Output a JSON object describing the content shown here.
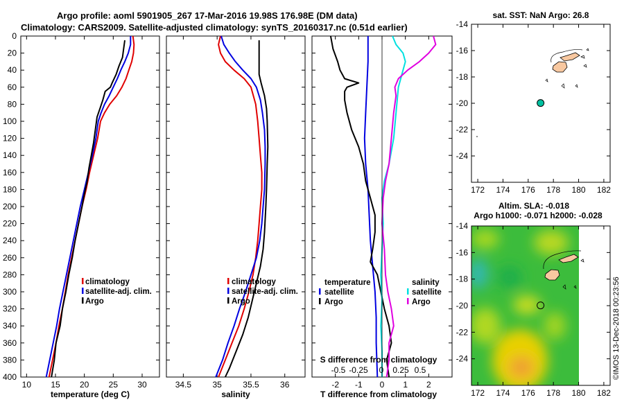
{
  "title": {
    "line1": "Argo profile: aoml 5901905_267 17-Mar-2016 19.98S 176.98E (DM data)",
    "line2": "Climatology: CARS2009. Satellite-adjusted climatology: synTS_20160317.nc (0.51d earlier)"
  },
  "colors": {
    "climatology": "#e00000",
    "satellite": "#0000e0",
    "argo": "#000000",
    "sat_sal": "#00e0e0",
    "argo_sal": "#e000e0",
    "land": "#f8c8a0"
  },
  "chart_data": [
    {
      "type": "line",
      "id": "temperature",
      "xlabel": "temperature (deg C)",
      "ylabel": "",
      "xlim": [
        9,
        33
      ],
      "ylim": [
        400,
        0
      ],
      "xticks": [
        10,
        15,
        20,
        25,
        30
      ],
      "yticks": [
        0,
        20,
        40,
        60,
        80,
        100,
        120,
        140,
        160,
        180,
        200,
        220,
        240,
        260,
        280,
        300,
        320,
        340,
        360,
        380,
        400
      ],
      "legend": [
        "climatology",
        "satellite-adj. clim.",
        "Argo"
      ],
      "series": [
        {
          "name": "climatology",
          "color": "#e00000",
          "points": [
            [
              28.4,
              0
            ],
            [
              28.6,
              10
            ],
            [
              28.5,
              20
            ],
            [
              28.2,
              30
            ],
            [
              27.7,
              40
            ],
            [
              27.2,
              50
            ],
            [
              26.5,
              60
            ],
            [
              25.6,
              70
            ],
            [
              24.4,
              80
            ],
            [
              23.5,
              90
            ],
            [
              22.8,
              100
            ],
            [
              22.3,
              120
            ],
            [
              21.6,
              140
            ],
            [
              20.9,
              160
            ],
            [
              20.3,
              180
            ],
            [
              19.6,
              200
            ],
            [
              19.0,
              220
            ],
            [
              18.4,
              240
            ],
            [
              17.8,
              260
            ],
            [
              17.2,
              280
            ],
            [
              16.7,
              300
            ],
            [
              16.2,
              320
            ],
            [
              15.6,
              340
            ],
            [
              15.1,
              360
            ],
            [
              14.5,
              380
            ],
            [
              13.9,
              400
            ]
          ]
        },
        {
          "name": "satellite-adj. clim.",
          "color": "#0000e0",
          "points": [
            [
              28.0,
              0
            ],
            [
              28.0,
              10
            ],
            [
              27.6,
              20
            ],
            [
              27.0,
              30
            ],
            [
              26.3,
              40
            ],
            [
              25.7,
              50
            ],
            [
              25.0,
              60
            ],
            [
              24.3,
              70
            ],
            [
              23.5,
              80
            ],
            [
              22.9,
              90
            ],
            [
              22.4,
              100
            ],
            [
              22.0,
              120
            ],
            [
              21.4,
              140
            ],
            [
              20.7,
              160
            ],
            [
              20.0,
              180
            ],
            [
              19.3,
              200
            ],
            [
              18.7,
              220
            ],
            [
              18.1,
              240
            ],
            [
              17.5,
              260
            ],
            [
              16.9,
              280
            ],
            [
              16.3,
              300
            ],
            [
              15.7,
              320
            ],
            [
              15.2,
              340
            ],
            [
              14.6,
              360
            ],
            [
              14.0,
              380
            ],
            [
              13.4,
              400
            ]
          ]
        },
        {
          "name": "Argo",
          "color": "#000000",
          "points": [
            [
              27.0,
              5
            ],
            [
              26.8,
              15
            ],
            [
              26.6,
              25
            ],
            [
              26.0,
              35
            ],
            [
              25.5,
              45
            ],
            [
              24.8,
              55
            ],
            [
              24.5,
              60
            ],
            [
              23.6,
              65
            ],
            [
              23.2,
              75
            ],
            [
              22.7,
              85
            ],
            [
              22.2,
              95
            ],
            [
              21.9,
              110
            ],
            [
              21.6,
              125
            ],
            [
              21.2,
              140
            ],
            [
              20.8,
              155
            ],
            [
              20.5,
              170
            ],
            [
              20.0,
              185
            ],
            [
              19.6,
              200
            ],
            [
              19.0,
              220
            ],
            [
              18.4,
              240
            ],
            [
              17.9,
              260
            ],
            [
              17.3,
              280
            ],
            [
              16.8,
              300
            ],
            [
              16.2,
              320
            ],
            [
              15.8,
              340
            ],
            [
              15.1,
              360
            ],
            [
              14.8,
              380
            ],
            [
              14.3,
              400
            ]
          ]
        }
      ]
    },
    {
      "type": "line",
      "id": "salinity",
      "xlabel": "salinity",
      "ylabel": "",
      "xlim": [
        34.25,
        36.3
      ],
      "ylim": [
        400,
        0
      ],
      "xticks": [
        34.5,
        35,
        35.5,
        36
      ],
      "legend": [
        "climatology",
        "satellite-adj. clim.",
        "Argo"
      ],
      "series": [
        {
          "name": "climatology",
          "color": "#e00000",
          "points": [
            [
              35.05,
              0
            ],
            [
              35.02,
              10
            ],
            [
              35.05,
              20
            ],
            [
              35.12,
              30
            ],
            [
              35.25,
              40
            ],
            [
              35.4,
              50
            ],
            [
              35.5,
              60
            ],
            [
              35.57,
              80
            ],
            [
              35.6,
              100
            ],
            [
              35.62,
              120
            ],
            [
              35.64,
              140
            ],
            [
              35.66,
              160
            ],
            [
              35.66,
              180
            ],
            [
              35.64,
              200
            ],
            [
              35.62,
              220
            ],
            [
              35.6,
              240
            ],
            [
              35.57,
              260
            ],
            [
              35.53,
              280
            ],
            [
              35.47,
              300
            ],
            [
              35.4,
              320
            ],
            [
              35.32,
              340
            ],
            [
              35.22,
              360
            ],
            [
              35.12,
              380
            ],
            [
              35.02,
              400
            ]
          ]
        },
        {
          "name": "satellite-adj. clim.",
          "color": "#0000e0",
          "points": [
            [
              35.06,
              0
            ],
            [
              35.1,
              10
            ],
            [
              35.18,
              20
            ],
            [
              35.27,
              30
            ],
            [
              35.38,
              40
            ],
            [
              35.5,
              50
            ],
            [
              35.58,
              60
            ],
            [
              35.64,
              75
            ],
            [
              35.67,
              90
            ],
            [
              35.7,
              110
            ],
            [
              35.71,
              130
            ],
            [
              35.71,
              150
            ],
            [
              35.7,
              180
            ],
            [
              35.68,
              200
            ],
            [
              35.66,
              220
            ],
            [
              35.63,
              240
            ],
            [
              35.58,
              260
            ],
            [
              35.5,
              280
            ],
            [
              35.42,
              300
            ],
            [
              35.33,
              320
            ],
            [
              35.25,
              340
            ],
            [
              35.16,
              360
            ],
            [
              35.08,
              380
            ],
            [
              34.98,
              400
            ]
          ]
        },
        {
          "name": "Argo",
          "color": "#000000",
          "points": [
            [
              35.62,
              5
            ],
            [
              35.62,
              20
            ],
            [
              35.62,
              35
            ],
            [
              35.62,
              45
            ],
            [
              35.65,
              55
            ],
            [
              35.7,
              70
            ],
            [
              35.73,
              85
            ],
            [
              35.74,
              100
            ],
            [
              35.75,
              130
            ],
            [
              35.74,
              150
            ],
            [
              35.73,
              180
            ],
            [
              35.72,
              200
            ],
            [
              35.7,
              230
            ],
            [
              35.68,
              250
            ],
            [
              35.64,
              270
            ],
            [
              35.58,
              290
            ],
            [
              35.52,
              310
            ],
            [
              35.46,
              330
            ],
            [
              35.38,
              350
            ],
            [
              35.28,
              370
            ],
            [
              35.18,
              390
            ],
            [
              35.12,
              400
            ]
          ]
        }
      ]
    },
    {
      "type": "line",
      "id": "differences",
      "xlabel": "T difference from climatology",
      "xlabel_top": "S difference from climatology",
      "xlim": [
        -3.0,
        3.0
      ],
      "ylim": [
        400,
        0
      ],
      "xticks": [
        -2,
        -1,
        0,
        1,
        2
      ],
      "xticks_top": [
        -0.5,
        -0.25,
        0,
        0.25,
        0.5
      ],
      "legend_left_title": "temperature",
      "legend_right_title": "salinity",
      "legend_left": [
        "satellite",
        "Argo"
      ],
      "legend_right": [
        "satellite",
        "Argo"
      ],
      "series": [
        {
          "name": "T satellite",
          "color": "#0000e0",
          "points": [
            [
              -0.6,
              0
            ],
            [
              -0.6,
              30
            ],
            [
              -0.65,
              60
            ],
            [
              -0.7,
              90
            ],
            [
              -0.75,
              120
            ],
            [
              -0.7,
              150
            ],
            [
              -0.6,
              180
            ],
            [
              -0.55,
              210
            ],
            [
              -0.5,
              240
            ],
            [
              -0.4,
              270
            ],
            [
              -0.3,
              300
            ],
            [
              -0.25,
              330
            ],
            [
              -0.25,
              360
            ],
            [
              -0.2,
              400
            ]
          ]
        },
        {
          "name": "T Argo",
          "color": "#000000",
          "points": [
            [
              -2.2,
              0
            ],
            [
              -2.1,
              15
            ],
            [
              -1.9,
              30
            ],
            [
              -1.8,
              40
            ],
            [
              -1.6,
              50
            ],
            [
              -1.0,
              55
            ],
            [
              -1.5,
              60
            ],
            [
              -1.6,
              65
            ],
            [
              -1.6,
              75
            ],
            [
              -1.5,
              90
            ],
            [
              -1.3,
              110
            ],
            [
              -1.0,
              130
            ],
            [
              -0.8,
              150
            ],
            [
              -0.7,
              170
            ],
            [
              -0.5,
              190
            ],
            [
              -0.3,
              210
            ],
            [
              -0.3,
              230
            ],
            [
              -0.4,
              250
            ],
            [
              -0.5,
              265
            ],
            [
              -0.2,
              280
            ],
            [
              -0.05,
              300
            ],
            [
              0.1,
              320
            ],
            [
              0.3,
              340
            ],
            [
              0.4,
              360
            ],
            [
              0.2,
              380
            ],
            [
              0.3,
              400
            ]
          ]
        },
        {
          "name": "S satellite",
          "color": "#00e0e0",
          "points": [
            [
              0.45,
              0
            ],
            [
              0.6,
              10
            ],
            [
              0.9,
              20
            ],
            [
              1.0,
              30
            ],
            [
              0.9,
              40
            ],
            [
              0.7,
              60
            ],
            [
              0.6,
              90
            ],
            [
              0.5,
              120
            ],
            [
              0.3,
              150
            ],
            [
              0.1,
              170
            ],
            [
              0.0,
              190
            ],
            [
              0.05,
              220
            ],
            [
              0.0,
              250
            ],
            [
              -0.05,
              280
            ],
            [
              0.0,
              310
            ],
            [
              -0.05,
              340
            ],
            [
              0.0,
              370
            ],
            [
              0.0,
              400
            ]
          ]
        },
        {
          "name": "S Argo",
          "color": "#e000e0",
          "points": [
            [
              2.2,
              0
            ],
            [
              2.3,
              10
            ],
            [
              2.0,
              20
            ],
            [
              1.6,
              30
            ],
            [
              1.1,
              40
            ],
            [
              0.7,
              50
            ],
            [
              0.55,
              60
            ],
            [
              0.6,
              70
            ],
            [
              0.5,
              90
            ],
            [
              0.4,
              120
            ],
            [
              0.3,
              150
            ],
            [
              0.15,
              170
            ],
            [
              0.05,
              190
            ],
            [
              0.0,
              220
            ],
            [
              0.1,
              250
            ],
            [
              0.15,
              280
            ],
            [
              0.25,
              300
            ],
            [
              0.4,
              320
            ],
            [
              0.5,
              340
            ],
            [
              0.3,
              360
            ],
            [
              0.3,
              380
            ],
            [
              0.2,
              400
            ]
          ]
        }
      ]
    },
    {
      "type": "scatter",
      "id": "sst-map",
      "title": "sat. SST: NaN Argo: 26.8",
      "xlim": [
        171.5,
        182.5
      ],
      "ylim": [
        -26,
        -14
      ],
      "xticks": [
        172,
        174,
        176,
        178,
        180,
        182
      ],
      "yticks": [
        -14,
        -16,
        -18,
        -20,
        -22,
        -24
      ],
      "argo_position": [
        176.98,
        -19.98
      ]
    },
    {
      "type": "heatmap",
      "id": "sla-map",
      "title_line1": "Altim. SLA: -0.018",
      "title_line2": "Argo h1000: -0.071 h2000: -0.028",
      "xlim": [
        171.5,
        182.5
      ],
      "ylim": [
        -26,
        -14
      ],
      "xticks": [
        172,
        174,
        176,
        178,
        180,
        182
      ],
      "yticks": [
        -14,
        -16,
        -18,
        -20,
        -22,
        -24
      ],
      "argo_position": [
        176.98,
        -19.98
      ]
    }
  ],
  "watermark": "©IMOS 13-Dec-2018 00:23:56"
}
